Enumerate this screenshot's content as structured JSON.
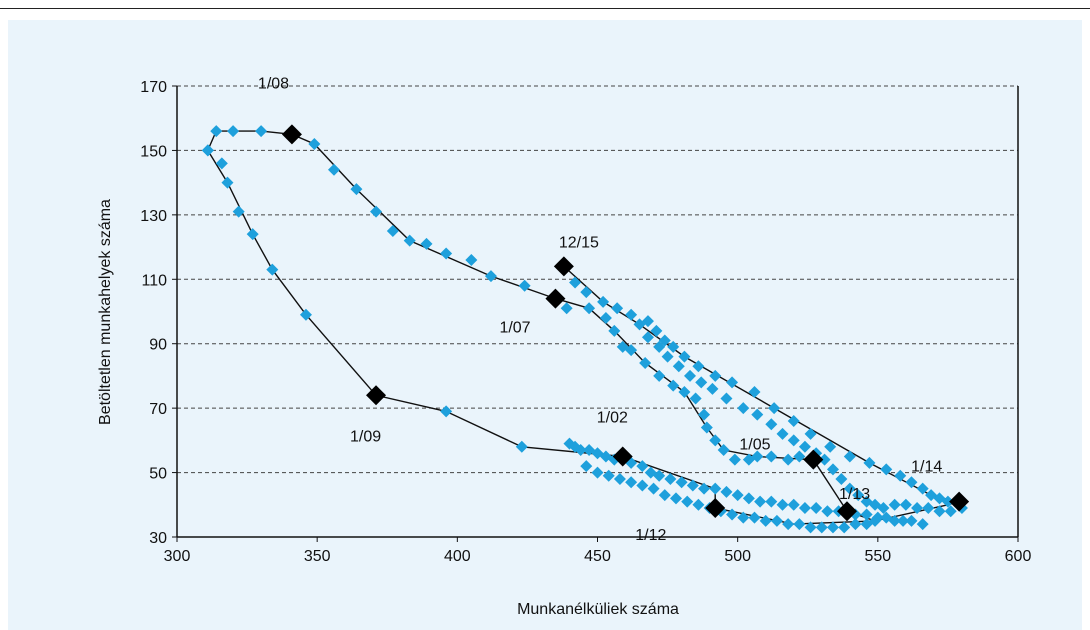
{
  "chart_data": {
    "type": "scatter",
    "xlabel": "Munkanélküliek száma",
    "ylabel": "Betöltetlen munkahelyek száma",
    "xlim": [
      300,
      600
    ],
    "ylim": [
      30,
      170
    ],
    "xticks": [
      300,
      350,
      400,
      450,
      500,
      550,
      600
    ],
    "yticks": [
      30,
      50,
      70,
      90,
      110,
      130,
      150,
      170
    ],
    "grid": "horizontal dashed",
    "colors": {
      "series": "#1ea0dc",
      "highlight": "#000000",
      "line": "#111111",
      "background": "#eaf4fb"
    },
    "series": [
      {
        "marker": "diamond",
        "points": [
          [
            311,
            150
          ],
          [
            314,
            156
          ],
          [
            320,
            156
          ],
          [
            330,
            156
          ],
          [
            341,
            155
          ],
          [
            349,
            152
          ],
          [
            356,
            144
          ],
          [
            364,
            138
          ],
          [
            371,
            131
          ],
          [
            377,
            125
          ],
          [
            383,
            122
          ],
          [
            389,
            121
          ],
          [
            396,
            118
          ],
          [
            405,
            116
          ],
          [
            412,
            111
          ],
          [
            424,
            108
          ],
          [
            435,
            104
          ],
          [
            439,
            101
          ],
          [
            447,
            101
          ],
          [
            453,
            98
          ],
          [
            456,
            94
          ],
          [
            459,
            89
          ],
          [
            462,
            88
          ],
          [
            467,
            84
          ],
          [
            472,
            80
          ],
          [
            477,
            77
          ],
          [
            481,
            75
          ],
          [
            485,
            73
          ],
          [
            488,
            68
          ],
          [
            489,
            64
          ],
          [
            492,
            60
          ],
          [
            495,
            57
          ],
          [
            499,
            54
          ],
          [
            504,
            54
          ],
          [
            507,
            55
          ],
          [
            512,
            55
          ],
          [
            518,
            54
          ],
          [
            522,
            55
          ],
          [
            527,
            54
          ],
          [
            311,
            150
          ],
          [
            316,
            146
          ],
          [
            318,
            140
          ],
          [
            322,
            131
          ],
          [
            327,
            124
          ],
          [
            334,
            113
          ],
          [
            346,
            99
          ],
          [
            371,
            74
          ],
          [
            396,
            69
          ],
          [
            423,
            58
          ],
          [
            440,
            59
          ],
          [
            442,
            58
          ],
          [
            444,
            57
          ],
          [
            447,
            57
          ],
          [
            450,
            56
          ],
          [
            453,
            55
          ],
          [
            456,
            54
          ],
          [
            459,
            55
          ],
          [
            462,
            53
          ],
          [
            466,
            52
          ],
          [
            469,
            50
          ],
          [
            472,
            49
          ],
          [
            476,
            48
          ],
          [
            480,
            47
          ],
          [
            484,
            46
          ],
          [
            488,
            45
          ],
          [
            492,
            45
          ],
          [
            496,
            44
          ],
          [
            500,
            43
          ],
          [
            504,
            42
          ],
          [
            508,
            41
          ],
          [
            512,
            41
          ],
          [
            516,
            40
          ],
          [
            520,
            40
          ],
          [
            524,
            39
          ],
          [
            528,
            39
          ],
          [
            532,
            38
          ],
          [
            536,
            38
          ],
          [
            539,
            38
          ],
          [
            542,
            37
          ],
          [
            546,
            37
          ],
          [
            550,
            36
          ],
          [
            553,
            36
          ],
          [
            556,
            35
          ],
          [
            559,
            35
          ],
          [
            562,
            35
          ],
          [
            566,
            34
          ],
          [
            446,
            52
          ],
          [
            450,
            50
          ],
          [
            454,
            49
          ],
          [
            458,
            48
          ],
          [
            462,
            47
          ],
          [
            466,
            46
          ],
          [
            470,
            45
          ],
          [
            474,
            43
          ],
          [
            478,
            42
          ],
          [
            482,
            41
          ],
          [
            486,
            40
          ],
          [
            490,
            39
          ],
          [
            494,
            38
          ],
          [
            498,
            37
          ],
          [
            502,
            36
          ],
          [
            506,
            36
          ],
          [
            510,
            35
          ],
          [
            514,
            35
          ],
          [
            518,
            34
          ],
          [
            522,
            34
          ],
          [
            526,
            33
          ],
          [
            530,
            33
          ],
          [
            534,
            33
          ],
          [
            538,
            33
          ],
          [
            542,
            34
          ],
          [
            546,
            34
          ],
          [
            549,
            35
          ],
          [
            438,
            114
          ],
          [
            442,
            109
          ],
          [
            446,
            106
          ],
          [
            452,
            103
          ],
          [
            457,
            101
          ],
          [
            462,
            99
          ],
          [
            465,
            96
          ],
          [
            468,
            92
          ],
          [
            472,
            89
          ],
          [
            475,
            86
          ],
          [
            479,
            83
          ],
          [
            483,
            80
          ],
          [
            487,
            78
          ],
          [
            491,
            76
          ],
          [
            496,
            73
          ],
          [
            502,
            70
          ],
          [
            507,
            68
          ],
          [
            512,
            65
          ],
          [
            516,
            62
          ],
          [
            520,
            60
          ],
          [
            524,
            58
          ],
          [
            528,
            56
          ],
          [
            531,
            54
          ],
          [
            534,
            51
          ],
          [
            537,
            48
          ],
          [
            540,
            45
          ],
          [
            543,
            43
          ],
          [
            546,
            41
          ],
          [
            549,
            40
          ],
          [
            552,
            39
          ],
          [
            556,
            40
          ],
          [
            560,
            40
          ],
          [
            564,
            39
          ],
          [
            568,
            39
          ],
          [
            572,
            38
          ],
          [
            576,
            38
          ],
          [
            580,
            39
          ],
          [
            468,
            97
          ],
          [
            471,
            94
          ],
          [
            474,
            91
          ],
          [
            477,
            89
          ],
          [
            481,
            86
          ],
          [
            486,
            83
          ],
          [
            492,
            80
          ],
          [
            498,
            78
          ],
          [
            506,
            75
          ],
          [
            513,
            70
          ],
          [
            520,
            66
          ],
          [
            526,
            62
          ],
          [
            533,
            58
          ],
          [
            540,
            55
          ],
          [
            547,
            53
          ],
          [
            553,
            51
          ],
          [
            558,
            49
          ],
          [
            562,
            47
          ],
          [
            566,
            45
          ],
          [
            569,
            43
          ],
          [
            572,
            42
          ],
          [
            575,
            41
          ],
          [
            578,
            41
          ]
        ]
      },
      {
        "marker": "large black diamond",
        "points": [
          [
            341,
            155
          ],
          [
            438,
            114
          ],
          [
            435,
            104
          ],
          [
            371,
            74
          ],
          [
            459,
            55
          ],
          [
            527,
            54
          ],
          [
            539,
            38
          ],
          [
            492,
            39
          ],
          [
            579,
            41
          ]
        ]
      }
    ],
    "annotations": [
      {
        "text": "1/08",
        "x": 341,
        "y": 155
      },
      {
        "text": "12/15",
        "x": 438,
        "y": 114
      },
      {
        "text": "1/07",
        "x": 435,
        "y": 104
      },
      {
        "text": "1/09",
        "x": 371,
        "y": 74
      },
      {
        "text": "1/02",
        "x": 459,
        "y": 55
      },
      {
        "text": "1/05",
        "x": 527,
        "y": 54
      },
      {
        "text": "1/13",
        "x": 539,
        "y": 38
      },
      {
        "text": "1/12",
        "x": 492,
        "y": 39
      },
      {
        "text": "1/14",
        "x": 579,
        "y": 41
      }
    ],
    "path": [
      [
        311,
        150
      ],
      [
        314,
        156
      ],
      [
        320,
        156
      ],
      [
        330,
        156
      ],
      [
        341,
        155
      ],
      [
        349,
        152
      ],
      [
        364,
        138
      ],
      [
        383,
        122
      ],
      [
        412,
        111
      ],
      [
        435,
        104
      ],
      [
        447,
        101
      ],
      [
        456,
        94
      ],
      [
        467,
        84
      ],
      [
        481,
        75
      ],
      [
        489,
        64
      ],
      [
        495,
        57
      ],
      [
        507,
        55
      ],
      [
        527,
        54
      ],
      [
        539,
        38
      ],
      [
        549,
        35
      ],
      [
        575,
        40
      ],
      [
        579,
        41
      ],
      [
        578,
        41
      ],
      [
        569,
        43
      ],
      [
        547,
        53
      ],
      [
        513,
        70
      ],
      [
        481,
        86
      ],
      [
        465,
        96
      ],
      [
        452,
        103
      ],
      [
        438,
        114
      ]
    ],
    "path2": [
      [
        311,
        150
      ],
      [
        318,
        140
      ],
      [
        327,
        124
      ],
      [
        334,
        113
      ],
      [
        346,
        99
      ],
      [
        371,
        74
      ],
      [
        396,
        69
      ],
      [
        423,
        58
      ],
      [
        459,
        55
      ],
      [
        492,
        45
      ],
      [
        492,
        39
      ],
      [
        520,
        34
      ],
      [
        549,
        35
      ]
    ]
  }
}
